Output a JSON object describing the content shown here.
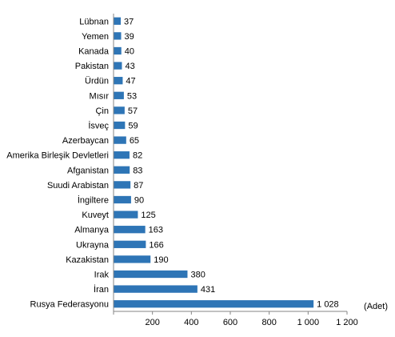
{
  "chart_data": {
    "type": "bar",
    "orientation": "horizontal",
    "categories": [
      "Lübnan",
      "Yemen",
      "Kanada",
      "Pakistan",
      "Ürdün",
      "Mısır",
      "Çin",
      "İsveç",
      "Azerbaycan",
      "Amerika Birleşik Devletleri",
      "Afganistan",
      "Suudi Arabistan",
      "İngiltere",
      "Kuveyt",
      "Almanya",
      "Ukrayna",
      "Kazakistan",
      "Irak",
      "İran",
      "Rusya Federasyonu"
    ],
    "values": [
      37,
      39,
      40,
      43,
      47,
      53,
      57,
      59,
      65,
      82,
      83,
      87,
      90,
      125,
      163,
      166,
      190,
      380,
      431,
      1028
    ],
    "value_labels": [
      "37",
      "39",
      "40",
      "43",
      "47",
      "53",
      "57",
      "59",
      "65",
      "82",
      "83",
      "87",
      "90",
      "125",
      "163",
      "166",
      "190",
      "380",
      "431",
      "1 028"
    ],
    "x_ticks": [
      0,
      200,
      400,
      600,
      800,
      1000,
      1200
    ],
    "x_tick_labels": [
      "",
      "200",
      "400",
      "600",
      "800",
      "1 000",
      "1 200"
    ],
    "xlim": [
      0,
      1200
    ],
    "unit_label": "(Adet)",
    "title": "",
    "bar_color": "#2E75B6",
    "grid": false,
    "legend": "none"
  }
}
